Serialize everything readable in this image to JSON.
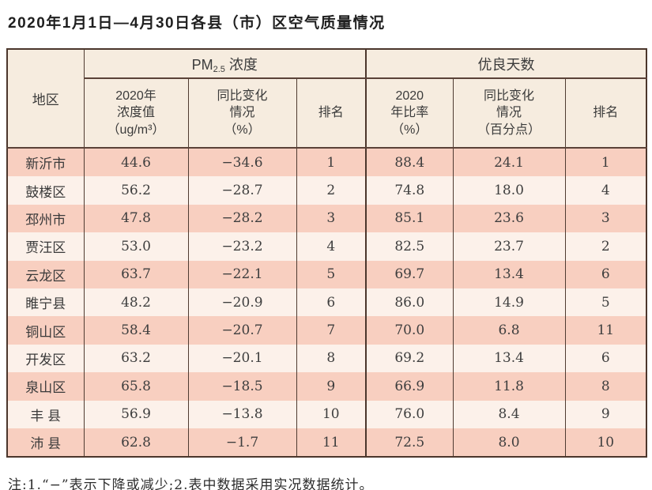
{
  "title": "2020年1月1日—4月30日各县（市）区空气质量情况",
  "note": "注:1.“−”表示下降或减少;2.表中数据采用实况数据统计。",
  "colors": {
    "header_bg": "#f6ecdf",
    "row_salmon": "#f8cfc0",
    "row_light": "#fcf1ea",
    "border_dark": "#4b362c"
  },
  "table": {
    "header": {
      "region": "地区",
      "pm_group": {
        "prefix": "PM",
        "sub": "2.5",
        "suffix": " 浓度"
      },
      "good_group": "优良天数",
      "pm_value": "2020年\n浓度值\n（ug/m³）",
      "pm_change": "同比变化\n情况\n（%）",
      "pm_rank": "排名",
      "good_rate": "2020\n年比率\n（%）",
      "good_change": "同比变化\n情况\n（百分点）",
      "good_rank": "排名"
    },
    "rows": [
      {
        "region": "新沂市",
        "pm_value": "44.6",
        "pm_change": "−34.6",
        "pm_rank": "1",
        "good_rate": "88.4",
        "good_change": "24.1",
        "good_rank": "1"
      },
      {
        "region": "鼓楼区",
        "pm_value": "56.2",
        "pm_change": "−28.7",
        "pm_rank": "2",
        "good_rate": "74.8",
        "good_change": "18.0",
        "good_rank": "4"
      },
      {
        "region": "邳州市",
        "pm_value": "47.8",
        "pm_change": "−28.2",
        "pm_rank": "3",
        "good_rate": "85.1",
        "good_change": "23.6",
        "good_rank": "3"
      },
      {
        "region": "贾汪区",
        "pm_value": "53.0",
        "pm_change": "−23.2",
        "pm_rank": "4",
        "good_rate": "82.5",
        "good_change": "23.7",
        "good_rank": "2"
      },
      {
        "region": "云龙区",
        "pm_value": "63.7",
        "pm_change": "−22.1",
        "pm_rank": "5",
        "good_rate": "69.7",
        "good_change": "13.4",
        "good_rank": "6"
      },
      {
        "region": "睢宁县",
        "pm_value": "48.2",
        "pm_change": "−20.9",
        "pm_rank": "6",
        "good_rate": "86.0",
        "good_change": "14.9",
        "good_rank": "5"
      },
      {
        "region": "铜山区",
        "pm_value": "58.4",
        "pm_change": "−20.7",
        "pm_rank": "7",
        "good_rate": "70.0",
        "good_change": "6.8",
        "good_rank": "11"
      },
      {
        "region": "开发区",
        "pm_value": "63.2",
        "pm_change": "−20.1",
        "pm_rank": "8",
        "good_rate": "69.2",
        "good_change": "13.4",
        "good_rank": "6"
      },
      {
        "region": "泉山区",
        "pm_value": "65.8",
        "pm_change": "−18.5",
        "pm_rank": "9",
        "good_rate": "66.9",
        "good_change": "11.8",
        "good_rank": "8"
      },
      {
        "region": "丰 县",
        "pm_value": "56.9",
        "pm_change": "−13.8",
        "pm_rank": "10",
        "good_rate": "76.0",
        "good_change": "8.4",
        "good_rank": "9"
      },
      {
        "region": "沛 县",
        "pm_value": "62.8",
        "pm_change": "−1.7",
        "pm_rank": "11",
        "good_rate": "72.5",
        "good_change": "8.0",
        "good_rank": "10"
      }
    ]
  }
}
